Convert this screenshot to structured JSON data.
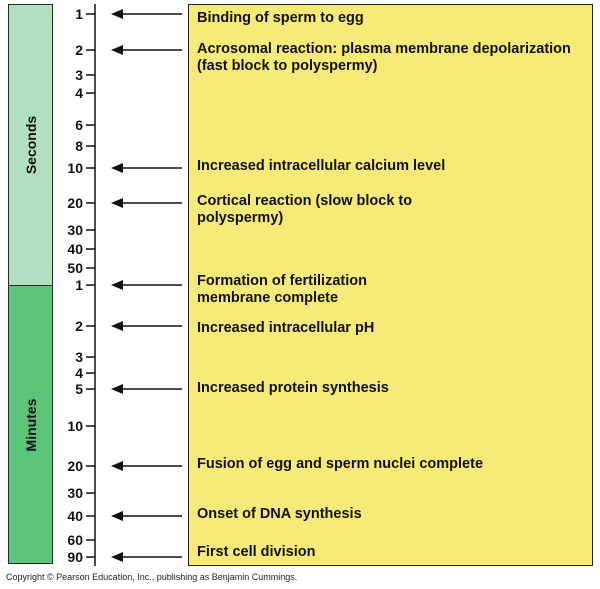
{
  "bands": {
    "seconds_label": "Seconds",
    "minutes_label": "Minutes",
    "seconds_color": "#b2dfbf",
    "minutes_color": "#5dc47c"
  },
  "ticks": [
    {
      "label": "1",
      "unit": "seconds",
      "arrow": true
    },
    {
      "label": "2",
      "unit": "seconds",
      "arrow": true
    },
    {
      "label": "3",
      "unit": "seconds",
      "arrow": false
    },
    {
      "label": "4",
      "unit": "seconds",
      "arrow": false
    },
    {
      "label": "6",
      "unit": "seconds",
      "arrow": false
    },
    {
      "label": "8",
      "unit": "seconds",
      "arrow": false
    },
    {
      "label": "10",
      "unit": "seconds",
      "arrow": true
    },
    {
      "label": "20",
      "unit": "seconds",
      "arrow": true
    },
    {
      "label": "30",
      "unit": "seconds",
      "arrow": false
    },
    {
      "label": "40",
      "unit": "seconds",
      "arrow": false
    },
    {
      "label": "50",
      "unit": "seconds",
      "arrow": false
    },
    {
      "label": "1",
      "unit": "minutes",
      "arrow": true
    },
    {
      "label": "2",
      "unit": "minutes",
      "arrow": true
    },
    {
      "label": "3",
      "unit": "minutes",
      "arrow": false
    },
    {
      "label": "4",
      "unit": "minutes",
      "arrow": false
    },
    {
      "label": "5",
      "unit": "minutes",
      "arrow": true
    },
    {
      "label": "10",
      "unit": "minutes",
      "arrow": false
    },
    {
      "label": "20",
      "unit": "minutes",
      "arrow": true
    },
    {
      "label": "30",
      "unit": "minutes",
      "arrow": false
    },
    {
      "label": "40",
      "unit": "minutes",
      "arrow": true
    },
    {
      "label": "60",
      "unit": "minutes",
      "arrow": false
    },
    {
      "label": "90",
      "unit": "minutes",
      "arrow": true
    }
  ],
  "events": [
    {
      "text": "Binding of sperm to egg"
    },
    {
      "text": "Acrosomal reaction: plasma membrane depolarization (fast block to polyspermy)"
    },
    {
      "text": "Increased intracellular calcium level"
    },
    {
      "text": "Cortical reaction (slow block to polyspermy)"
    },
    {
      "text": "Formation of fertilization membrane complete"
    },
    {
      "text": "Increased intracellular pH"
    },
    {
      "text": "Increased protein synthesis"
    },
    {
      "text": "Fusion of egg and sperm nuclei complete"
    },
    {
      "text": "Onset of DNA synthesis"
    },
    {
      "text": "First cell division"
    }
  ],
  "colors": {
    "events_box": "#f7ea78",
    "line": "#111111"
  },
  "copyright": "Copyright © Pearson Education, Inc., publishing as Benjamin Cummings."
}
